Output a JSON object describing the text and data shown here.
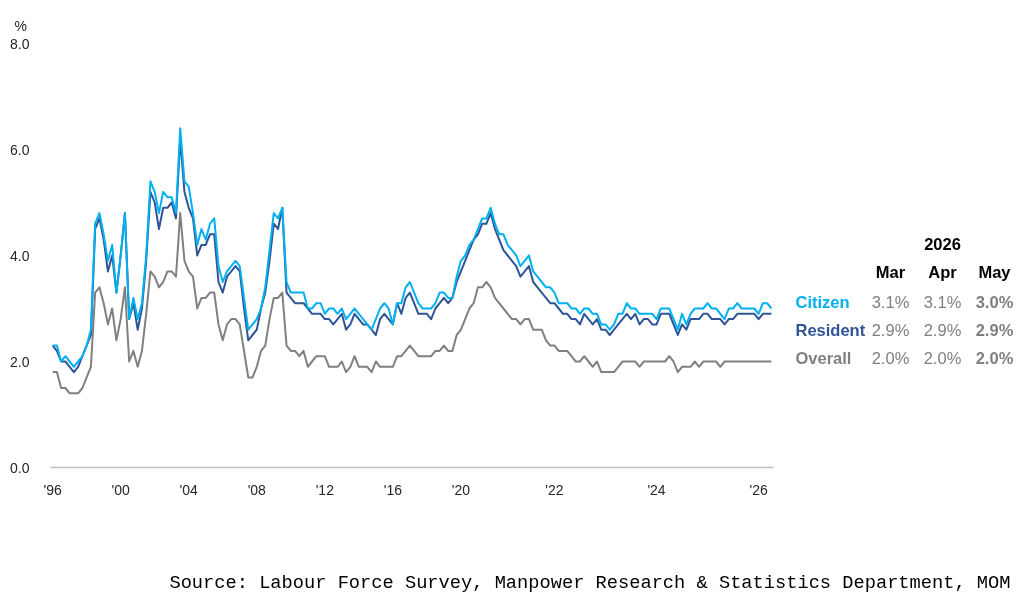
{
  "chart_data": {
    "type": "line",
    "ylabel": "%",
    "categories": [
      "'96",
      null,
      null,
      null,
      null,
      null,
      null,
      null,
      null,
      null,
      null,
      null,
      null,
      null,
      null,
      null,
      "'00",
      null,
      null,
      null,
      null,
      null,
      null,
      null,
      null,
      null,
      null,
      null,
      null,
      null,
      null,
      null,
      "'04",
      null,
      null,
      null,
      null,
      null,
      null,
      null,
      null,
      null,
      null,
      null,
      null,
      null,
      null,
      null,
      "'08",
      null,
      null,
      null,
      null,
      null,
      null,
      null,
      null,
      null,
      null,
      null,
      null,
      null,
      null,
      null,
      "'12",
      null,
      null,
      null,
      null,
      null,
      null,
      null,
      null,
      null,
      null,
      null,
      null,
      null,
      null,
      null,
      "'16",
      null,
      null,
      null,
      null,
      null,
      null,
      null,
      null,
      null,
      null,
      null,
      null,
      null,
      null,
      null,
      "'20",
      null,
      null,
      null,
      null,
      null,
      null,
      null,
      null,
      null,
      null,
      null,
      null,
      null,
      null,
      null,
      null,
      null,
      null,
      null,
      null,
      null,
      "'22",
      null,
      null,
      null,
      null,
      null,
      null,
      null,
      null,
      null,
      null,
      null,
      null,
      null,
      null,
      null,
      null,
      null,
      null,
      null,
      null,
      null,
      null,
      null,
      "'24",
      null,
      null,
      null,
      null,
      null,
      null,
      null,
      null,
      null,
      null,
      null,
      null,
      null,
      null,
      null,
      null,
      null,
      null,
      null,
      null,
      null,
      null,
      null,
      "'26",
      null,
      null,
      null
    ],
    "series": [
      {
        "name": "Citizen",
        "color": "#00b0f0",
        "values": [
          2.3,
          2.3,
          2.0,
          2.1,
          2.0,
          1.9,
          2.0,
          2.1,
          2.3,
          2.6,
          4.6,
          4.8,
          4.4,
          3.9,
          4.2,
          3.3,
          4.0,
          4.8,
          2.8,
          3.2,
          2.8,
          3.1,
          4.0,
          5.4,
          5.2,
          4.8,
          5.2,
          5.1,
          5.1,
          4.8,
          6.4,
          5.4,
          5.3,
          4.8,
          4.2,
          4.5,
          4.3,
          4.6,
          4.7,
          3.8,
          3.5,
          3.7,
          3.8,
          3.9,
          3.8,
          3.2,
          2.6,
          2.7,
          2.8,
          3.0,
          3.4,
          4.1,
          4.8,
          4.7,
          4.9,
          3.5,
          3.3,
          3.3,
          3.3,
          3.3,
          3.0,
          3.0,
          3.1,
          3.1,
          2.9,
          3.0,
          3.0,
          2.9,
          3.0,
          2.8,
          2.9,
          3.0,
          2.9,
          2.8,
          2.7,
          2.6,
          2.8,
          3.0,
          3.1,
          3.0,
          2.7,
          3.1,
          3.1,
          3.4,
          3.5,
          3.3,
          3.1,
          3.0,
          3.0,
          3.0,
          3.1,
          3.3,
          3.3,
          3.2,
          3.2,
          3.6,
          3.9,
          4.0,
          4.2,
          4.3,
          4.5,
          4.7,
          4.7,
          4.9,
          4.6,
          4.4,
          4.4,
          4.2,
          4.1,
          4.0,
          3.8,
          3.9,
          4.0,
          3.7,
          3.6,
          3.5,
          3.4,
          3.4,
          3.3,
          3.1,
          3.1,
          3.1,
          3.0,
          3.0,
          2.9,
          3.0,
          3.0,
          2.9,
          2.9,
          2.7,
          2.7,
          2.6,
          2.7,
          2.9,
          2.9,
          3.1,
          3.0,
          3.0,
          2.9,
          2.9,
          2.9,
          2.9,
          2.8,
          3.0,
          3.0,
          3.0,
          2.8,
          2.6,
          2.9,
          2.7,
          2.9,
          3.0,
          3.0,
          3.0,
          3.1,
          3.0,
          3.0,
          2.9,
          2.8,
          3.0,
          3.0,
          3.1,
          3.0,
          3.0,
          3.0,
          3.0,
          2.9,
          3.1,
          3.1,
          3.0
        ]
      },
      {
        "name": "Resident",
        "color": "#2f5597",
        "values": [
          2.3,
          2.2,
          2.0,
          2.0,
          1.9,
          1.8,
          1.9,
          2.1,
          2.3,
          2.5,
          4.5,
          4.7,
          4.3,
          3.7,
          4.0,
          3.3,
          4.0,
          4.8,
          2.8,
          3.1,
          2.6,
          3.0,
          3.9,
          5.2,
          5.0,
          4.5,
          4.9,
          4.9,
          5.0,
          4.7,
          6.2,
          5.2,
          4.9,
          4.7,
          4.0,
          4.2,
          4.2,
          4.4,
          4.4,
          3.5,
          3.3,
          3.6,
          3.7,
          3.8,
          3.7,
          3.0,
          2.4,
          2.5,
          2.6,
          3.0,
          3.3,
          3.9,
          4.6,
          4.5,
          4.9,
          3.3,
          3.2,
          3.1,
          3.1,
          3.1,
          3.0,
          2.9,
          2.9,
          2.9,
          2.8,
          2.8,
          2.7,
          2.8,
          2.9,
          2.6,
          2.7,
          2.9,
          2.8,
          2.7,
          2.7,
          2.6,
          2.5,
          2.8,
          2.9,
          2.8,
          2.7,
          3.1,
          2.9,
          3.2,
          3.3,
          3.1,
          2.9,
          2.9,
          2.9,
          2.8,
          3.0,
          3.1,
          3.2,
          3.1,
          3.2,
          3.5,
          3.7,
          3.9,
          4.1,
          4.3,
          4.4,
          4.6,
          4.6,
          4.8,
          4.5,
          4.3,
          4.1,
          4.0,
          3.9,
          3.8,
          3.6,
          3.7,
          3.8,
          3.5,
          3.4,
          3.3,
          3.2,
          3.1,
          3.1,
          3.0,
          2.9,
          2.9,
          2.8,
          2.8,
          2.7,
          2.9,
          2.8,
          2.7,
          2.8,
          2.6,
          2.6,
          2.5,
          2.6,
          2.7,
          2.8,
          2.9,
          2.8,
          2.9,
          2.7,
          2.8,
          2.8,
          2.7,
          2.7,
          2.9,
          2.9,
          2.9,
          2.7,
          2.5,
          2.7,
          2.6,
          2.8,
          2.8,
          2.8,
          2.9,
          2.9,
          2.8,
          2.8,
          2.8,
          2.7,
          2.8,
          2.8,
          2.9,
          2.9,
          2.9,
          2.9,
          2.9,
          2.8,
          2.9,
          2.9,
          2.9
        ]
      },
      {
        "name": "Overall",
        "color": "#808080",
        "values": [
          1.8,
          1.8,
          1.5,
          1.5,
          1.4,
          1.4,
          1.4,
          1.5,
          1.7,
          1.9,
          3.3,
          3.4,
          3.1,
          2.7,
          3.0,
          2.4,
          2.8,
          3.4,
          2.0,
          2.2,
          1.9,
          2.2,
          2.9,
          3.7,
          3.6,
          3.4,
          3.5,
          3.7,
          3.7,
          3.6,
          4.8,
          3.9,
          3.7,
          3.6,
          3.0,
          3.2,
          3.2,
          3.3,
          3.3,
          2.7,
          2.4,
          2.7,
          2.8,
          2.8,
          2.7,
          2.2,
          1.7,
          1.7,
          1.9,
          2.2,
          2.3,
          2.8,
          3.2,
          3.2,
          3.3,
          2.3,
          2.2,
          2.2,
          2.1,
          2.2,
          1.9,
          2.0,
          2.1,
          2.1,
          2.1,
          1.9,
          1.9,
          1.9,
          2.0,
          1.8,
          1.9,
          2.1,
          1.9,
          1.9,
          1.9,
          1.8,
          2.0,
          1.9,
          1.9,
          1.9,
          1.9,
          2.1,
          2.1,
          2.2,
          2.3,
          2.2,
          2.1,
          2.1,
          2.1,
          2.1,
          2.2,
          2.2,
          2.3,
          2.2,
          2.2,
          2.5,
          2.6,
          2.8,
          3.0,
          3.1,
          3.4,
          3.4,
          3.5,
          3.4,
          3.2,
          3.1,
          3.0,
          2.9,
          2.8,
          2.8,
          2.7,
          2.8,
          2.8,
          2.6,
          2.6,
          2.6,
          2.4,
          2.3,
          2.3,
          2.2,
          2.2,
          2.2,
          2.1,
          2.0,
          2.0,
          2.1,
          2.0,
          1.9,
          2.0,
          1.8,
          1.8,
          1.8,
          1.8,
          1.9,
          2.0,
          2.0,
          2.0,
          2.0,
          1.9,
          2.0,
          2.0,
          2.0,
          2.0,
          2.0,
          2.0,
          2.1,
          2.0,
          1.8,
          1.9,
          1.9,
          1.9,
          2.0,
          1.9,
          2.0,
          2.0,
          2.0,
          2.0,
          1.9,
          2.0,
          2.0,
          2.0,
          2.0,
          2.0,
          2.0,
          2.0,
          2.0,
          2.0,
          2.0,
          2.0,
          2.0
        ]
      }
    ],
    "ylim": [
      0,
      8
    ],
    "yticks": [
      {
        "value": 0,
        "label": "0.0"
      },
      {
        "value": 2,
        "label": "2.0"
      },
      {
        "value": 4,
        "label": "4.0"
      },
      {
        "value": 6,
        "label": "6.0"
      },
      {
        "value": 8,
        "label": "8.0"
      }
    ],
    "annotations": [
      "2026",
      "Mar",
      "Apr",
      "May",
      "3.1%",
      "3.1%",
      "3.0%",
      "2.9%",
      "2.9%",
      "2.9%",
      "2.0%",
      "2.0%",
      "2.0%",
      "Source: Labour Force Survey, Manpower Research & Statistics Department, MOM"
    ]
  }
}
